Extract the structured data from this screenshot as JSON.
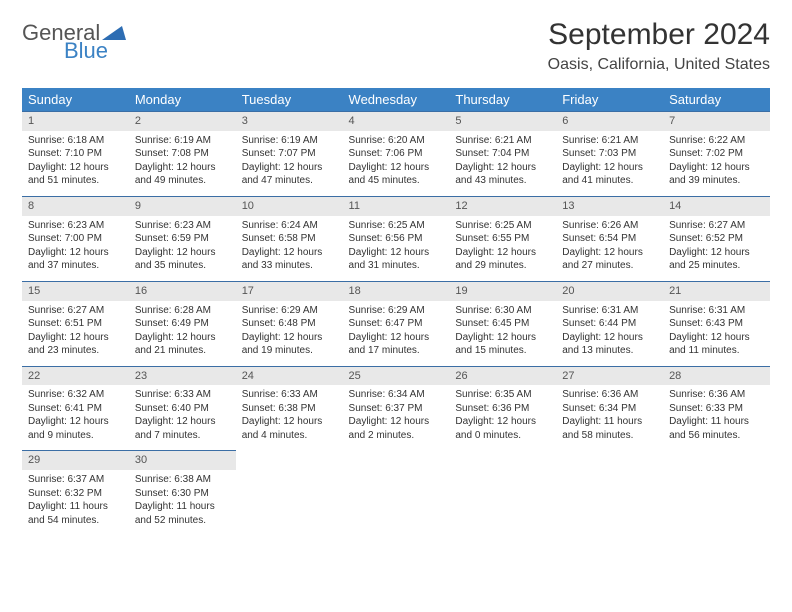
{
  "logo": {
    "text1": "General",
    "text2": "Blue",
    "triangle_color": "#2d6db3"
  },
  "title": {
    "month": "September 2024",
    "location": "Oasis, California, United States"
  },
  "colors": {
    "header_bg": "#3b82c4",
    "header_text": "#ffffff",
    "daynum_bg": "#e8e8e8",
    "daynum_border": "#3b6ea5",
    "body_text": "#333333"
  },
  "weekdays": [
    "Sunday",
    "Monday",
    "Tuesday",
    "Wednesday",
    "Thursday",
    "Friday",
    "Saturday"
  ],
  "weeks": [
    [
      {
        "n": "1",
        "sr": "6:18 AM",
        "ss": "7:10 PM",
        "dl": "12 hours and 51 minutes."
      },
      {
        "n": "2",
        "sr": "6:19 AM",
        "ss": "7:08 PM",
        "dl": "12 hours and 49 minutes."
      },
      {
        "n": "3",
        "sr": "6:19 AM",
        "ss": "7:07 PM",
        "dl": "12 hours and 47 minutes."
      },
      {
        "n": "4",
        "sr": "6:20 AM",
        "ss": "7:06 PM",
        "dl": "12 hours and 45 minutes."
      },
      {
        "n": "5",
        "sr": "6:21 AM",
        "ss": "7:04 PM",
        "dl": "12 hours and 43 minutes."
      },
      {
        "n": "6",
        "sr": "6:21 AM",
        "ss": "7:03 PM",
        "dl": "12 hours and 41 minutes."
      },
      {
        "n": "7",
        "sr": "6:22 AM",
        "ss": "7:02 PM",
        "dl": "12 hours and 39 minutes."
      }
    ],
    [
      {
        "n": "8",
        "sr": "6:23 AM",
        "ss": "7:00 PM",
        "dl": "12 hours and 37 minutes."
      },
      {
        "n": "9",
        "sr": "6:23 AM",
        "ss": "6:59 PM",
        "dl": "12 hours and 35 minutes."
      },
      {
        "n": "10",
        "sr": "6:24 AM",
        "ss": "6:58 PM",
        "dl": "12 hours and 33 minutes."
      },
      {
        "n": "11",
        "sr": "6:25 AM",
        "ss": "6:56 PM",
        "dl": "12 hours and 31 minutes."
      },
      {
        "n": "12",
        "sr": "6:25 AM",
        "ss": "6:55 PM",
        "dl": "12 hours and 29 minutes."
      },
      {
        "n": "13",
        "sr": "6:26 AM",
        "ss": "6:54 PM",
        "dl": "12 hours and 27 minutes."
      },
      {
        "n": "14",
        "sr": "6:27 AM",
        "ss": "6:52 PM",
        "dl": "12 hours and 25 minutes."
      }
    ],
    [
      {
        "n": "15",
        "sr": "6:27 AM",
        "ss": "6:51 PM",
        "dl": "12 hours and 23 minutes."
      },
      {
        "n": "16",
        "sr": "6:28 AM",
        "ss": "6:49 PM",
        "dl": "12 hours and 21 minutes."
      },
      {
        "n": "17",
        "sr": "6:29 AM",
        "ss": "6:48 PM",
        "dl": "12 hours and 19 minutes."
      },
      {
        "n": "18",
        "sr": "6:29 AM",
        "ss": "6:47 PM",
        "dl": "12 hours and 17 minutes."
      },
      {
        "n": "19",
        "sr": "6:30 AM",
        "ss": "6:45 PM",
        "dl": "12 hours and 15 minutes."
      },
      {
        "n": "20",
        "sr": "6:31 AM",
        "ss": "6:44 PM",
        "dl": "12 hours and 13 minutes."
      },
      {
        "n": "21",
        "sr": "6:31 AM",
        "ss": "6:43 PM",
        "dl": "12 hours and 11 minutes."
      }
    ],
    [
      {
        "n": "22",
        "sr": "6:32 AM",
        "ss": "6:41 PM",
        "dl": "12 hours and 9 minutes."
      },
      {
        "n": "23",
        "sr": "6:33 AM",
        "ss": "6:40 PM",
        "dl": "12 hours and 7 minutes."
      },
      {
        "n": "24",
        "sr": "6:33 AM",
        "ss": "6:38 PM",
        "dl": "12 hours and 4 minutes."
      },
      {
        "n": "25",
        "sr": "6:34 AM",
        "ss": "6:37 PM",
        "dl": "12 hours and 2 minutes."
      },
      {
        "n": "26",
        "sr": "6:35 AM",
        "ss": "6:36 PM",
        "dl": "12 hours and 0 minutes."
      },
      {
        "n": "27",
        "sr": "6:36 AM",
        "ss": "6:34 PM",
        "dl": "11 hours and 58 minutes."
      },
      {
        "n": "28",
        "sr": "6:36 AM",
        "ss": "6:33 PM",
        "dl": "11 hours and 56 minutes."
      }
    ],
    [
      {
        "n": "29",
        "sr": "6:37 AM",
        "ss": "6:32 PM",
        "dl": "11 hours and 54 minutes."
      },
      {
        "n": "30",
        "sr": "6:38 AM",
        "ss": "6:30 PM",
        "dl": "11 hours and 52 minutes."
      },
      null,
      null,
      null,
      null,
      null
    ]
  ],
  "labels": {
    "sunrise": "Sunrise: ",
    "sunset": "Sunset: ",
    "daylight": "Daylight: "
  }
}
